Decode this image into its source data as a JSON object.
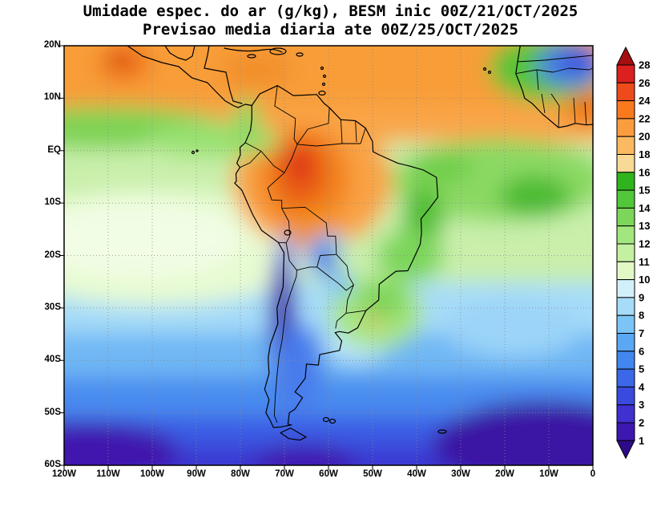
{
  "title": {
    "line1": "Umidade espec. do ar (g/kg), BESM inic 00Z/21/OCT/2025",
    "line2": "Previsao media diaria ate 00Z/25/OCT/2025"
  },
  "axes": {
    "y_labels": [
      "20N",
      "10N",
      "EQ",
      "10S",
      "20S",
      "30S",
      "40S",
      "50S",
      "60S"
    ],
    "x_labels": [
      "120W",
      "110W",
      "100W",
      "90W",
      "80W",
      "70W",
      "60W",
      "50W",
      "40W",
      "30W",
      "20W",
      "10W",
      "0"
    ]
  },
  "colorbar": {
    "labels_top_to_bottom": [
      "28",
      "26",
      "24",
      "22",
      "20",
      "18",
      "16",
      "15",
      "14",
      "13",
      "12",
      "11",
      "10",
      "9",
      "8",
      "7",
      "6",
      "5",
      "4",
      "3",
      "2",
      "1"
    ],
    "band_colors_top_to_bottom": [
      "#dc1f1f",
      "#ee4b1b",
      "#f97a1d",
      "#fb9c3e",
      "#fbb961",
      "#f8da96",
      "#30b41e",
      "#52c73a",
      "#7cd65a",
      "#a2e67e",
      "#c4f0a2",
      "#e2f9c6",
      "#d2f0fa",
      "#a6dcf8",
      "#7cc4f6",
      "#5aa7f3",
      "#4187ef",
      "#3a68e9",
      "#3a4ade",
      "#3f30cf",
      "#3d18b0"
    ],
    "triangle_top_color": "#a50f0f",
    "triangle_bottom_color": "#2e0b86"
  },
  "chart_data": {
    "type": "heatmap",
    "title": "Umidade espec. do ar (g/kg), BESM inic 00Z/21/OCT/2025",
    "subtitle": "Previsao media diaria ate 00Z/25/OCT/2025",
    "variable": "Umidade especifica do ar",
    "units": "g/kg",
    "model": "BESM",
    "initialization": "00Z/21/OCT/2025",
    "forecast_mean_through": "00Z/25/OCT/2025",
    "lon_domain": [
      "120W",
      "0"
    ],
    "lat_domain": [
      "60S",
      "20N"
    ],
    "contour_levels": [
      1,
      2,
      3,
      4,
      5,
      6,
      7,
      8,
      9,
      10,
      11,
      12,
      13,
      14,
      15,
      16,
      18,
      20,
      22,
      24,
      26,
      28
    ],
    "legend_position": "right",
    "grid": "dotted 10-degree graticule",
    "field_summary": [
      {
        "region": "Tropical band north of EQ (Caribbean, tropical Atlantic, west Africa)",
        "approx_value_g_per_kg": "18-22"
      },
      {
        "region": "Central Amazon maximum (~0-12S, 55W-70W)",
        "approx_value_g_per_kg": "22-26"
      },
      {
        "region": "Subtropical South Pacific and SE Brazil",
        "approx_value_g_per_kg": "10-14"
      },
      {
        "region": "Bolivia/Paraguay Chaco dry cells (17S-24S)",
        "approx_value_g_per_kg": "4-8"
      },
      {
        "region": "Andes / northern Chile dry streak (20S-38S near 70W)",
        "approx_value_g_per_kg": "1-3"
      },
      {
        "region": "Mid-latitude oceans 30S-45S",
        "approx_value_g_per_kg": "5-8"
      },
      {
        "region": "Southern Ocean 50S-60S",
        "approx_value_g_per_kg": "1-4"
      },
      {
        "region": "NE corner near west Africa (10N-20N, 0-10W)",
        "approx_value_g_per_kg": "3-6"
      }
    ]
  }
}
